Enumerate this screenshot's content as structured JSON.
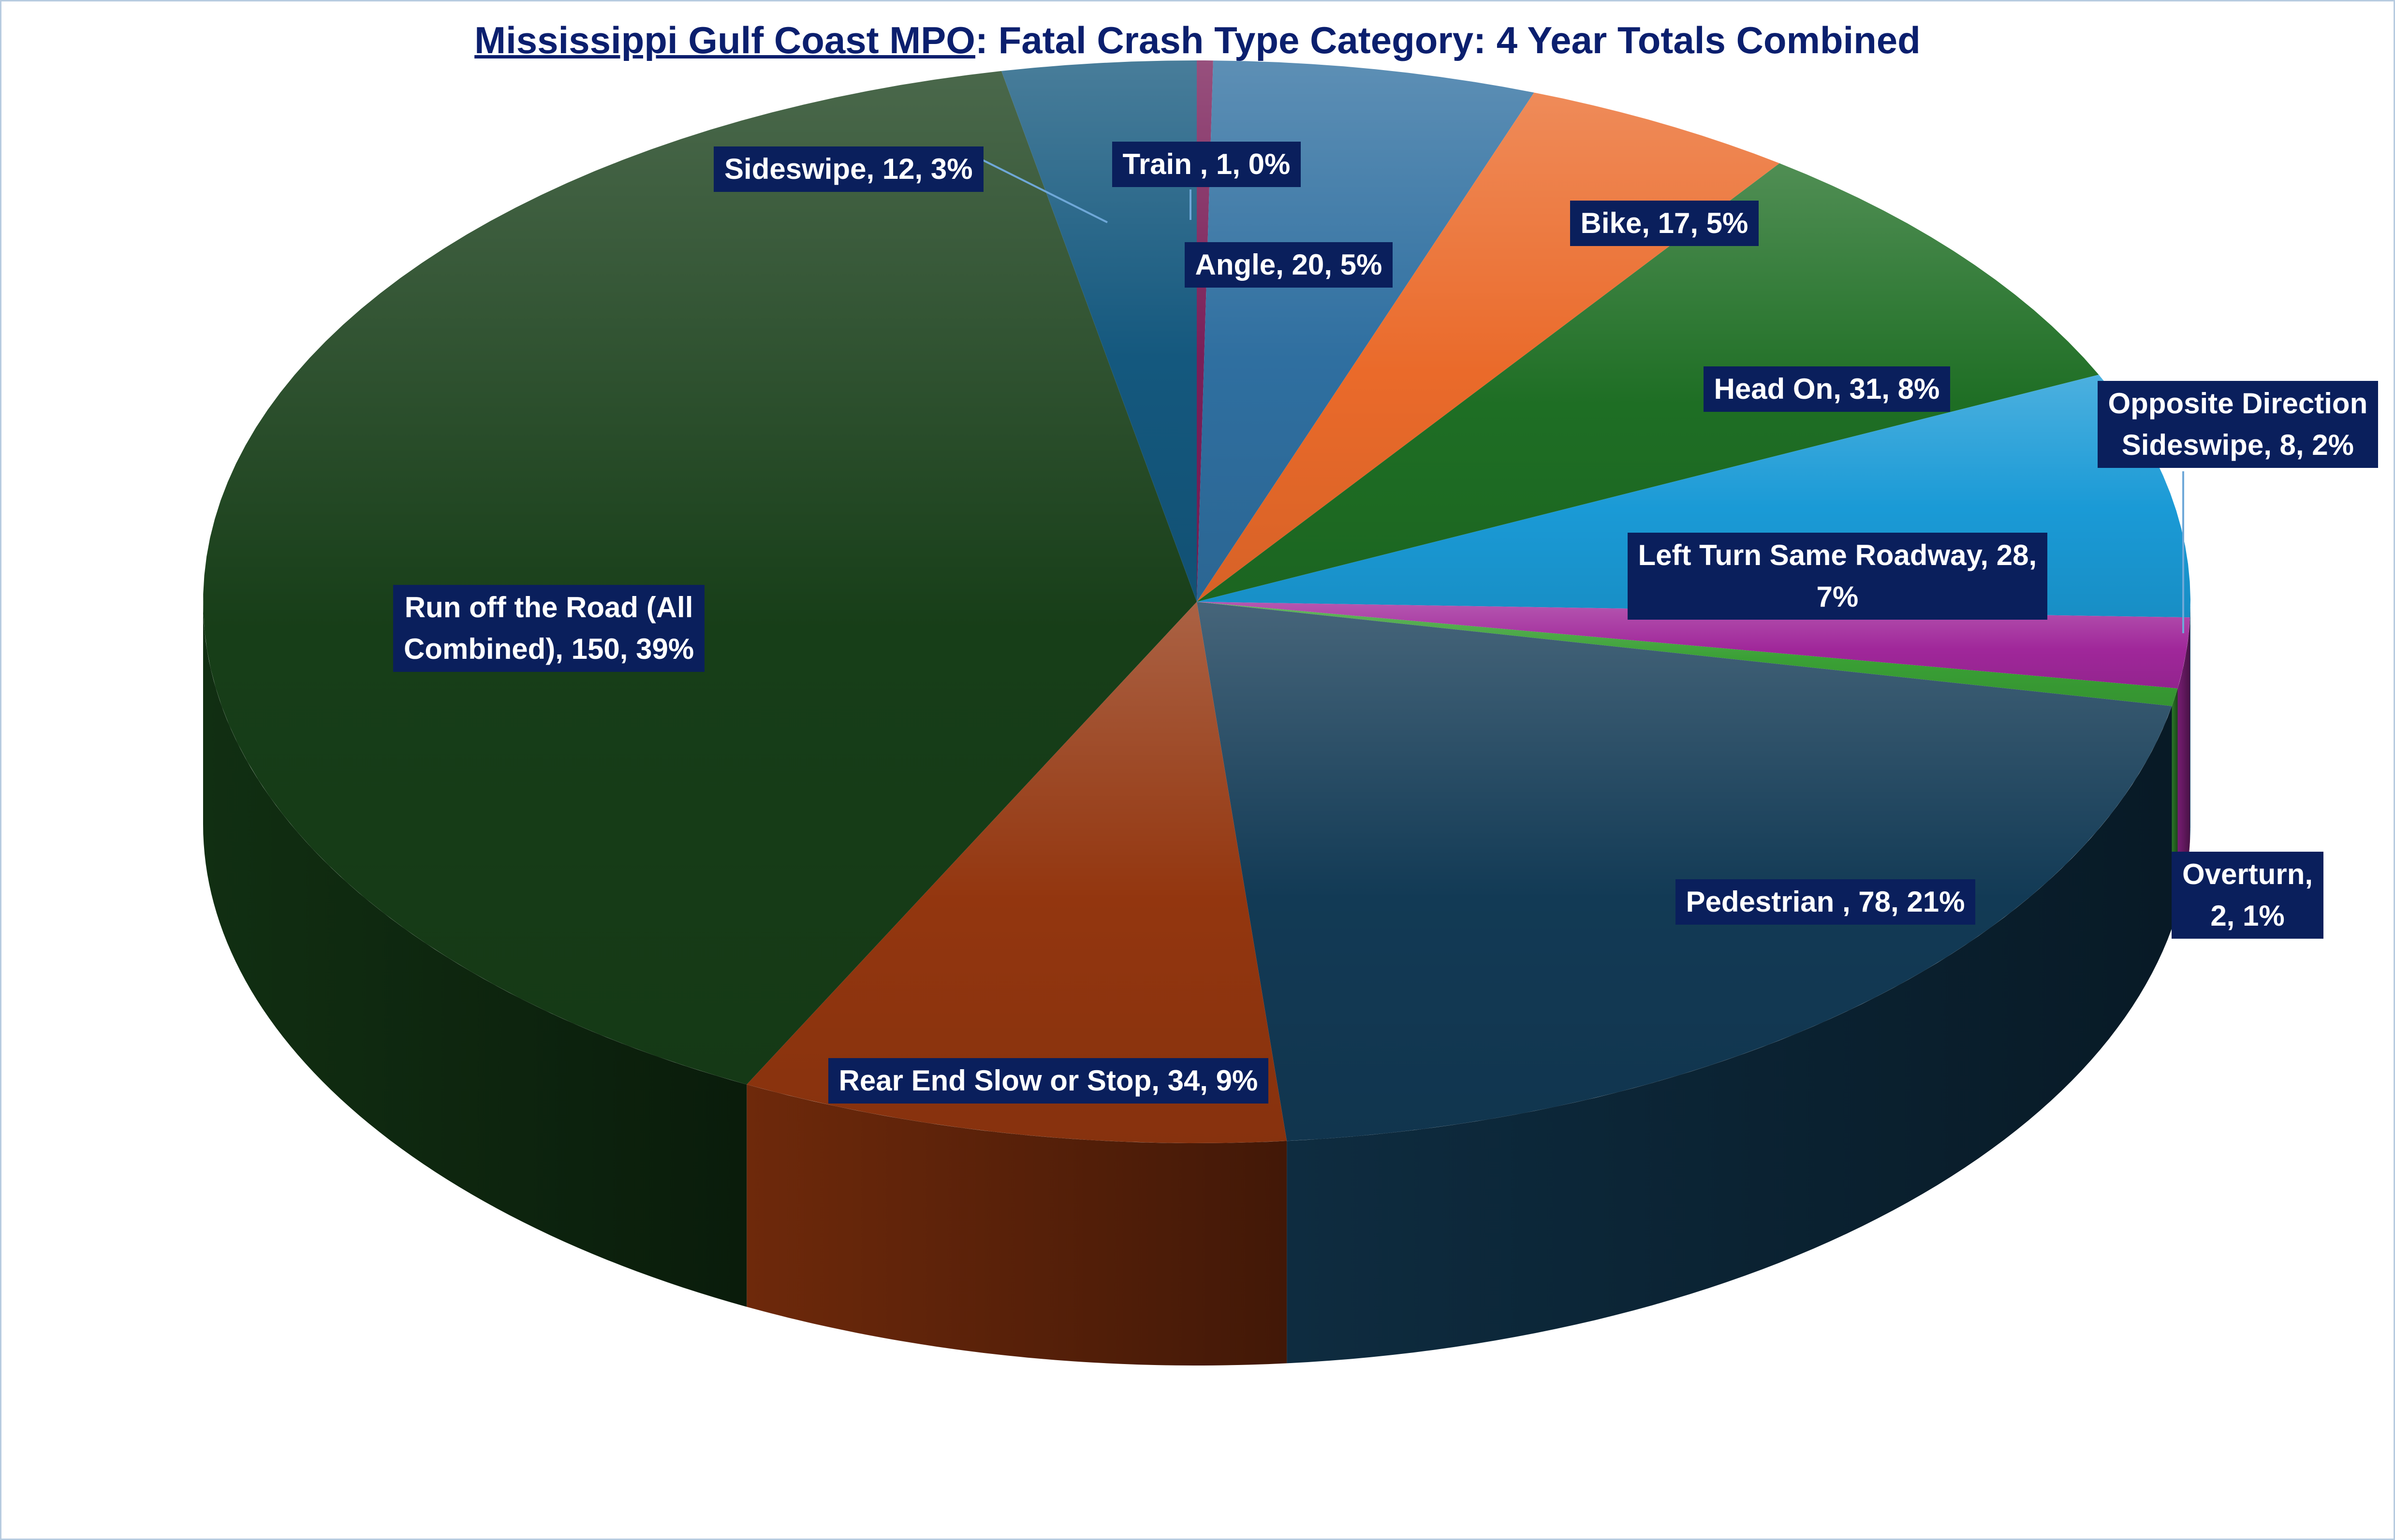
{
  "title_part1": "Mississippi Gulf Coast MPO",
  "title_part2": ": Fatal Crash Type Category: 4 Year Totals Combined",
  "chart_data": {
    "type": "pie",
    "title": "Mississippi Gulf Coast MPO: Fatal Crash Type Category: 4 Year Totals Combined",
    "three_d": true,
    "slices": [
      {
        "label": "Train ,",
        "value": 1,
        "percent": "0%",
        "color": "#7a1f58",
        "data_label": "Train , 1, 0%"
      },
      {
        "label": "Angle",
        "value": 20,
        "percent": "5%",
        "color": "#2f6fa0",
        "data_label": "Angle, 20, 5%"
      },
      {
        "label": "Bike",
        "value": 17,
        "percent": "5%",
        "color": "#ea6a2a",
        "data_label": "Bike, 17, 5%"
      },
      {
        "label": "Head On",
        "value": 31,
        "percent": "8%",
        "color": "#1e6e24",
        "data_label": "Head On, 31, 8%"
      },
      {
        "label": "Left Turn Same Roadway",
        "value": 28,
        "percent": "7%",
        "color": "#1a9ad6",
        "data_label_lines": [
          "Left Turn Same Roadway, 28,",
          "7%"
        ]
      },
      {
        "label": "Opposite Direction Sideswipe",
        "value": 8,
        "percent": "2%",
        "color": "#a0279a",
        "data_label_lines": [
          "Opposite Direction",
          "Sideswipe, 8, 2%"
        ]
      },
      {
        "label": "Overturn",
        "value": 2,
        "percent": "1%",
        "color": "#3aa035",
        "data_label_lines": [
          "Overturn,",
          "2, 1%"
        ]
      },
      {
        "label": "Pedestrian",
        "value": 78,
        "percent": "21%",
        "color": "#123a55",
        "data_label": "Pedestrian , 78, 21%"
      },
      {
        "label": "Rear End Slow or Stop",
        "value": 34,
        "percent": "9%",
        "color": "#93360f",
        "data_label": "Rear End Slow or Stop, 34, 9%"
      },
      {
        "label": "Run off the Road  (All Combined)",
        "value": 150,
        "percent": "39%",
        "color": "#173e18",
        "data_label_lines": [
          "Run off the Road  (All",
          "Combined), 150, 39%"
        ]
      },
      {
        "label": "Sideswipe",
        "value": 12,
        "percent": "3%",
        "color": "#14587e",
        "data_label": "Sideswipe, 12, 3%"
      }
    ]
  }
}
